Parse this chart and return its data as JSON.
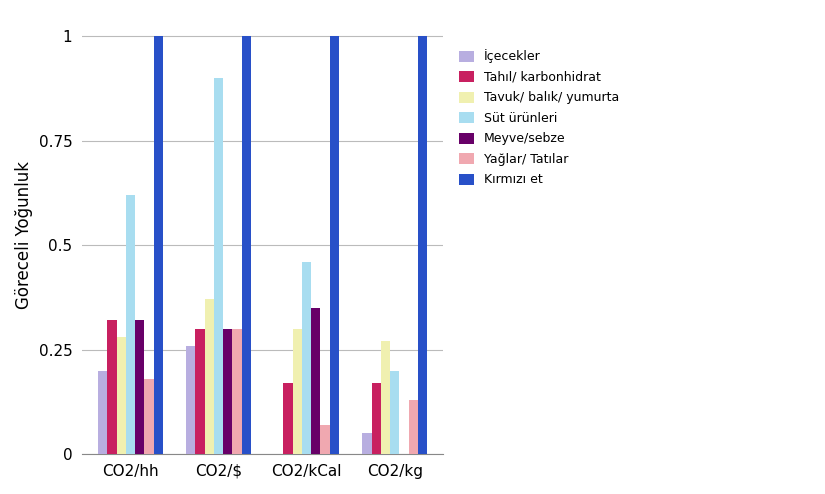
{
  "categories": [
    "CO2/hh",
    "CO2/$",
    "CO2/kCal",
    "CO2/kg"
  ],
  "series": [
    {
      "label": "İçecekler",
      "color": "#b8aee0",
      "values": [
        0.2,
        0.26,
        0.0,
        0.05
      ]
    },
    {
      "label": "Tahıl/ karbonhidrat",
      "color": "#c82060",
      "values": [
        0.32,
        0.3,
        0.17,
        0.17
      ]
    },
    {
      "label": "Tavuk/ balık/ yumurta",
      "color": "#f0f0b0",
      "values": [
        0.28,
        0.37,
        0.3,
        0.27
      ]
    },
    {
      "label": "Süt ürünleri",
      "color": "#a8ddf0",
      "values": [
        0.62,
        0.9,
        0.46,
        0.2
      ]
    },
    {
      "label": "Meyve/sebze",
      "color": "#680068",
      "values": [
        0.32,
        0.3,
        0.35,
        0.0
      ]
    },
    {
      "label": "Yağlar/ Tatılar",
      "color": "#f0a8b0",
      "values": [
        0.18,
        0.3,
        0.07,
        0.13
      ]
    },
    {
      "label": "Kırmızı et",
      "color": "#2850c8",
      "values": [
        1.0,
        1.0,
        1.0,
        1.0
      ]
    }
  ],
  "ylabel": "Göreceli Yoğunluk",
  "ylim": [
    0,
    1.05
  ],
  "yticks": [
    0,
    0.25,
    0.5,
    0.75,
    1
  ],
  "ytick_labels": [
    "0",
    "0.25",
    "0.5",
    "0.75",
    "1"
  ],
  "background_color": "#ffffff",
  "grid_color": "#bbbbbb",
  "bar_width": 0.105,
  "figsize": [
    8.25,
    4.94
  ],
  "dpi": 100
}
